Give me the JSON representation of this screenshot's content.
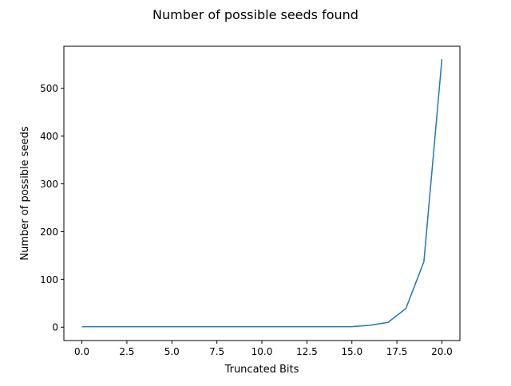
{
  "chart_data": {
    "type": "line",
    "title": "Number of possible seeds found",
    "xlabel": "Truncated Bits",
    "ylabel": "Number of possible seeds",
    "xlim": [
      -1,
      21
    ],
    "ylim": [
      -28,
      588
    ],
    "grid": false,
    "xticks": [
      0.0,
      2.5,
      5.0,
      7.5,
      10.0,
      12.5,
      15.0,
      17.5,
      20.0
    ],
    "xtick_labels": [
      "0.0",
      "2.5",
      "5.0",
      "7.5",
      "10.0",
      "12.5",
      "15.0",
      "17.5",
      "20.0"
    ],
    "yticks": [
      0,
      100,
      200,
      300,
      400,
      500
    ],
    "ytick_labels": [
      "0",
      "100",
      "200",
      "300",
      "400",
      "500"
    ],
    "series": [
      {
        "color": "#1f77b4",
        "x": [
          0,
          1,
          2,
          3,
          4,
          5,
          6,
          7,
          8,
          9,
          10,
          11,
          12,
          13,
          14,
          15,
          16,
          17,
          18,
          19,
          20
        ],
        "y": [
          1,
          1,
          1,
          1,
          1,
          1,
          1,
          1,
          1,
          1,
          1,
          1,
          1,
          1,
          1,
          1,
          4,
          10,
          39,
          137,
          561
        ]
      }
    ]
  }
}
